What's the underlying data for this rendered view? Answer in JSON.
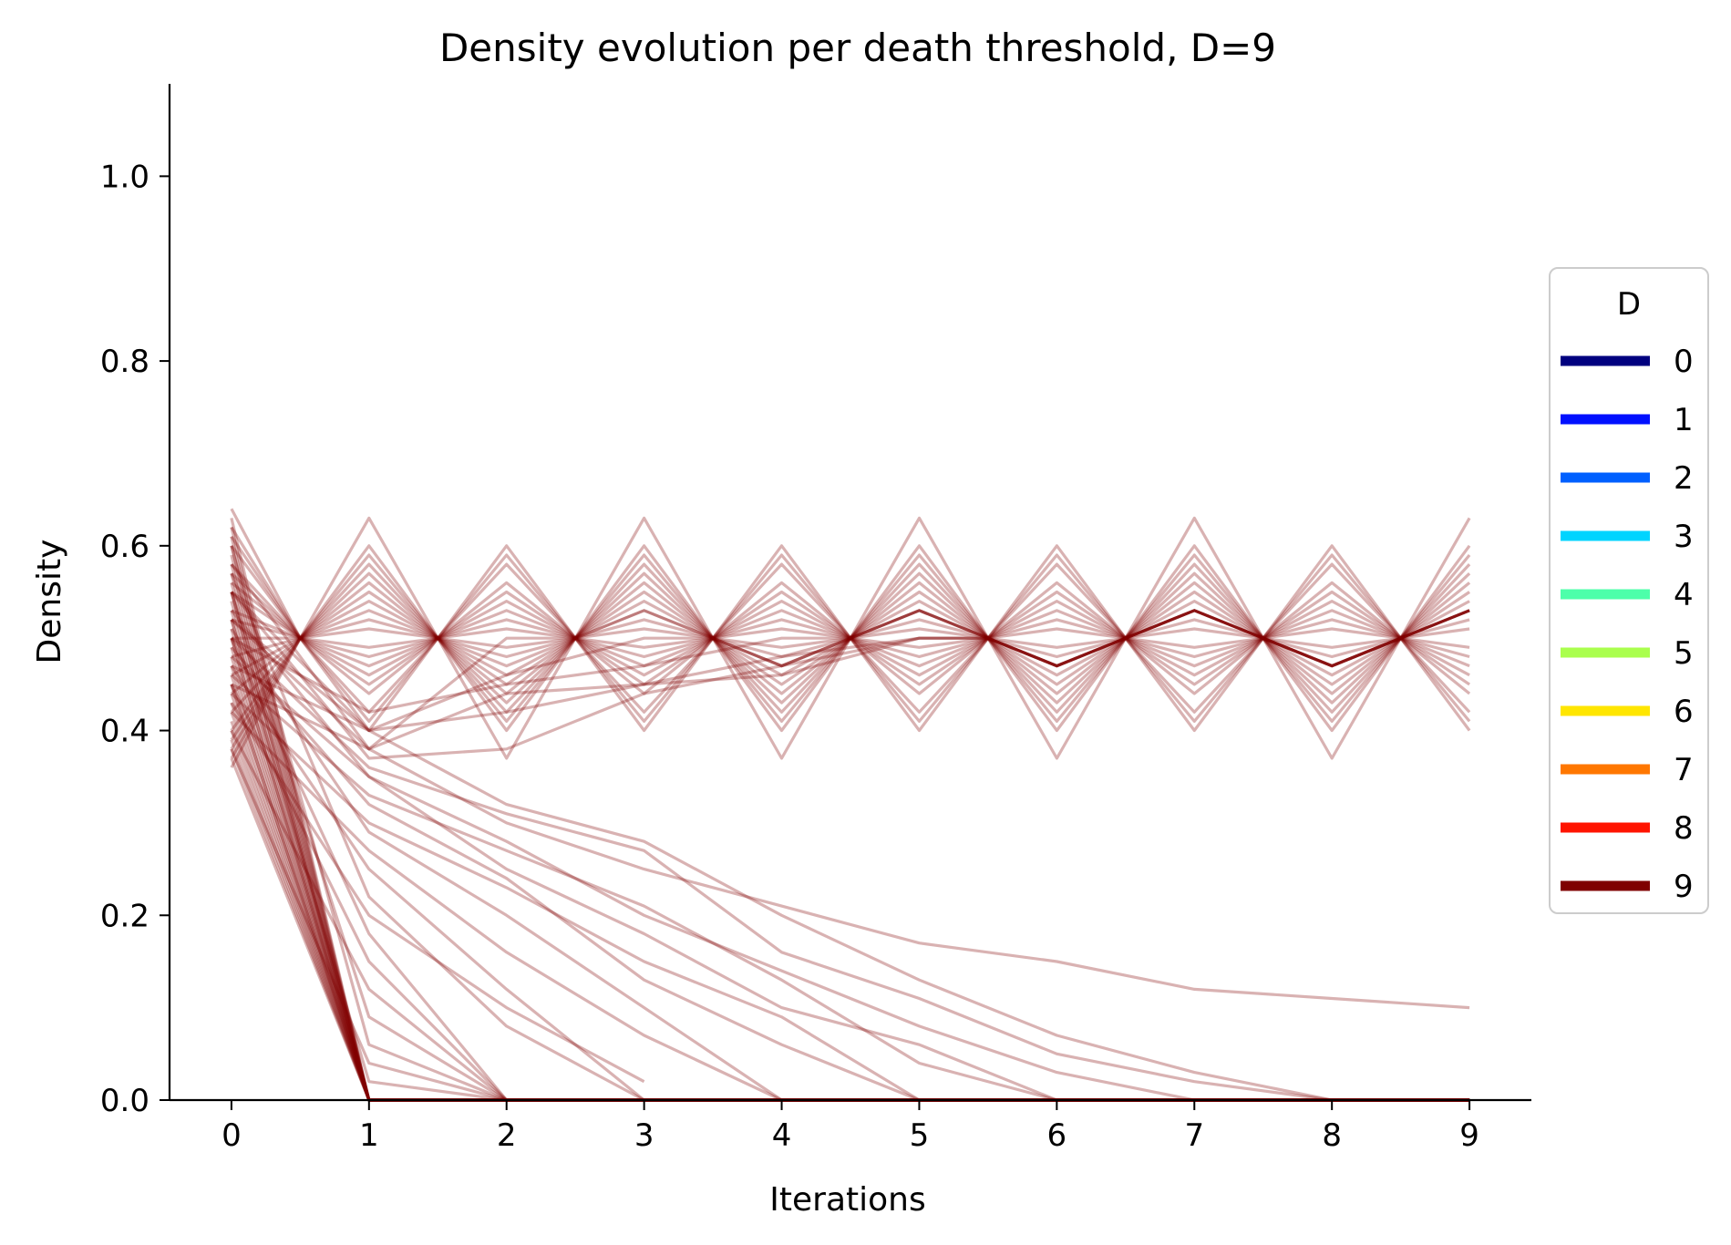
{
  "chart_data": {
    "type": "line",
    "title": "Density evolution per death threshold, D=9",
    "xlabel": "Iterations",
    "ylabel": "Density",
    "xlim": [
      -0.45,
      9.45
    ],
    "ylim": [
      0.0,
      1.1
    ],
    "x_ticks": [
      0,
      1,
      2,
      3,
      4,
      5,
      6,
      7,
      8,
      9
    ],
    "x_tick_labels": [
      "0",
      "1",
      "2",
      "3",
      "4",
      "5",
      "6",
      "7",
      "8",
      "9"
    ],
    "y_ticks": [
      0.0,
      0.2,
      0.4,
      0.6,
      0.8,
      1.0
    ],
    "y_tick_labels": [
      "0.0",
      "0.2",
      "0.4",
      "0.6",
      "0.8",
      "1.0"
    ],
    "grid": false,
    "line_color": "#800000",
    "line_opacity": 0.3,
    "legend": {
      "title": "D",
      "placement": "center-right, outside axes",
      "entries": [
        {
          "label": "0",
          "color": "#00007f"
        },
        {
          "label": "1",
          "color": "#0010ff"
        },
        {
          "label": "2",
          "color": "#0060ff"
        },
        {
          "label": "3",
          "color": "#00d4ff"
        },
        {
          "label": "4",
          "color": "#4dffaa"
        },
        {
          "label": "5",
          "color": "#aaff4d"
        },
        {
          "label": "6",
          "color": "#ffe600"
        },
        {
          "label": "7",
          "color": "#ff7700"
        },
        {
          "label": "8",
          "color": "#ff1400"
        },
        {
          "label": "9",
          "color": "#7f0000"
        }
      ]
    },
    "x": [
      0,
      0.5,
      1,
      1.5,
      2,
      2.5,
      3,
      3.5,
      4,
      4.5,
      5,
      5.5,
      6,
      6.5,
      7,
      7.5,
      8,
      8.5,
      9
    ],
    "oscillating_series": [
      {
        "start": 0.64,
        "amp": 0.13
      },
      {
        "start": 0.61,
        "amp": 0.1
      },
      {
        "start": 0.57,
        "amp": 0.09
      },
      {
        "start": 0.56,
        "amp": 0.07
      },
      {
        "start": 0.55,
        "amp": 0.06
      },
      {
        "start": 0.53,
        "amp": 0.05
      },
      {
        "start": 0.52,
        "amp": 0.04
      },
      {
        "start": 0.5,
        "amp": 0.03
      },
      {
        "start": 0.48,
        "amp": 0.02
      },
      {
        "start": 0.46,
        "amp": 0.01
      },
      {
        "start": 0.44,
        "amp": -0.01
      },
      {
        "start": 0.42,
        "amp": -0.02
      },
      {
        "start": 0.4,
        "amp": -0.03
      },
      {
        "start": 0.39,
        "amp": -0.04
      },
      {
        "start": 0.38,
        "amp": -0.05
      },
      {
        "start": 0.37,
        "amp": -0.06
      },
      {
        "start": 0.36,
        "amp": -0.08
      },
      {
        "start": 0.6,
        "amp": -0.09
      },
      {
        "start": 0.58,
        "amp": -0.1
      },
      {
        "start": 0.62,
        "amp": 0.08
      }
    ],
    "converging_series": [
      {
        "x": [
          0,
          1,
          2,
          3,
          4,
          5
        ],
        "y": [
          0.58,
          0.38,
          0.44,
          0.45,
          0.46,
          0.5
        ]
      },
      {
        "x": [
          0,
          1,
          2,
          3,
          4,
          5
        ],
        "y": [
          0.55,
          0.37,
          0.38,
          0.44,
          0.47,
          0.5
        ]
      },
      {
        "x": [
          0,
          1,
          2,
          3,
          4,
          5
        ],
        "y": [
          0.52,
          0.4,
          0.42,
          0.45,
          0.48,
          0.5
        ]
      },
      {
        "x": [
          0,
          1,
          2,
          3,
          4
        ],
        "y": [
          0.5,
          0.42,
          0.45,
          0.47,
          0.5
        ]
      },
      {
        "x": [
          0,
          1,
          2,
          3
        ],
        "y": [
          0.47,
          0.4,
          0.46,
          0.5
        ]
      },
      {
        "x": [
          0,
          1,
          2
        ],
        "y": [
          0.45,
          0.38,
          0.5
        ]
      }
    ],
    "decay_series": [
      {
        "x": [
          0,
          1,
          2,
          3,
          4,
          5,
          6,
          7,
          8,
          9
        ],
        "y": [
          0.52,
          0.38,
          0.3,
          0.25,
          0.21,
          0.17,
          0.15,
          0.12,
          0.11,
          0.1
        ]
      },
      {
        "x": [
          0,
          1,
          2,
          3,
          4,
          5,
          6,
          7,
          8,
          9
        ],
        "y": [
          0.55,
          0.4,
          0.32,
          0.28,
          0.2,
          0.13,
          0.07,
          0.03,
          0.0,
          0.0
        ]
      },
      {
        "x": [
          0,
          1,
          2,
          3,
          4,
          5,
          6,
          7,
          8,
          9
        ],
        "y": [
          0.5,
          0.36,
          0.31,
          0.27,
          0.16,
          0.11,
          0.05,
          0.02,
          0.0,
          0.0
        ]
      },
      {
        "x": [
          0,
          1,
          2,
          3,
          4,
          5,
          6,
          7
        ],
        "y": [
          0.48,
          0.35,
          0.28,
          0.2,
          0.14,
          0.08,
          0.03,
          0.0
        ]
      },
      {
        "x": [
          0,
          1,
          2,
          3,
          4,
          5,
          6
        ],
        "y": [
          0.46,
          0.33,
          0.27,
          0.21,
          0.13,
          0.04,
          0.0
        ]
      },
      {
        "x": [
          0,
          1,
          2,
          3,
          4,
          5,
          6
        ],
        "y": [
          0.53,
          0.35,
          0.25,
          0.18,
          0.1,
          0.06,
          0.0
        ]
      },
      {
        "x": [
          0,
          1,
          2,
          3,
          4,
          5
        ],
        "y": [
          0.44,
          0.3,
          0.23,
          0.15,
          0.09,
          0.0
        ]
      },
      {
        "x": [
          0,
          1,
          2,
          3,
          4,
          5
        ],
        "y": [
          0.49,
          0.32,
          0.24,
          0.13,
          0.06,
          0.0
        ]
      },
      {
        "x": [
          0,
          1,
          2,
          3,
          4
        ],
        "y": [
          0.51,
          0.29,
          0.2,
          0.1,
          0.0
        ]
      },
      {
        "x": [
          0,
          1,
          2,
          3,
          4
        ],
        "y": [
          0.42,
          0.27,
          0.16,
          0.07,
          0.0
        ]
      },
      {
        "x": [
          0,
          1,
          2,
          3
        ],
        "y": [
          0.47,
          0.25,
          0.12,
          0.0
        ]
      },
      {
        "x": [
          0,
          1,
          2,
          3
        ],
        "y": [
          0.57,
          0.22,
          0.08,
          0.0
        ]
      },
      {
        "x": [
          0,
          1,
          2,
          3
        ],
        "y": [
          0.43,
          0.2,
          0.1,
          0.02
        ]
      },
      {
        "x": [
          0,
          1,
          2
        ],
        "y": [
          0.5,
          0.18,
          0.0
        ]
      },
      {
        "x": [
          0,
          1,
          2
        ],
        "y": [
          0.45,
          0.15,
          0.0
        ]
      },
      {
        "x": [
          0,
          1,
          2
        ],
        "y": [
          0.4,
          0.12,
          0.0
        ]
      },
      {
        "x": [
          0,
          1,
          2
        ],
        "y": [
          0.55,
          0.09,
          0.0
        ]
      },
      {
        "x": [
          0,
          1,
          2
        ],
        "y": [
          0.6,
          0.06,
          0.0
        ]
      },
      {
        "x": [
          0,
          1,
          2
        ],
        "y": [
          0.38,
          0.04,
          0.0
        ]
      },
      {
        "x": [
          0,
          1,
          2
        ],
        "y": [
          0.52,
          0.02,
          0.0
        ]
      }
    ],
    "drop_to_zero_start_values": [
      0.37,
      0.39,
      0.4,
      0.41,
      0.42,
      0.43,
      0.44,
      0.45,
      0.46,
      0.47,
      0.48,
      0.49,
      0.5,
      0.51,
      0.52,
      0.53,
      0.54,
      0.55,
      0.56,
      0.57,
      0.58,
      0.59,
      0.6,
      0.61,
      0.62,
      0.63,
      0.38,
      0.45,
      0.5,
      0.55
    ],
    "zero_tail_end_x": 9
  }
}
